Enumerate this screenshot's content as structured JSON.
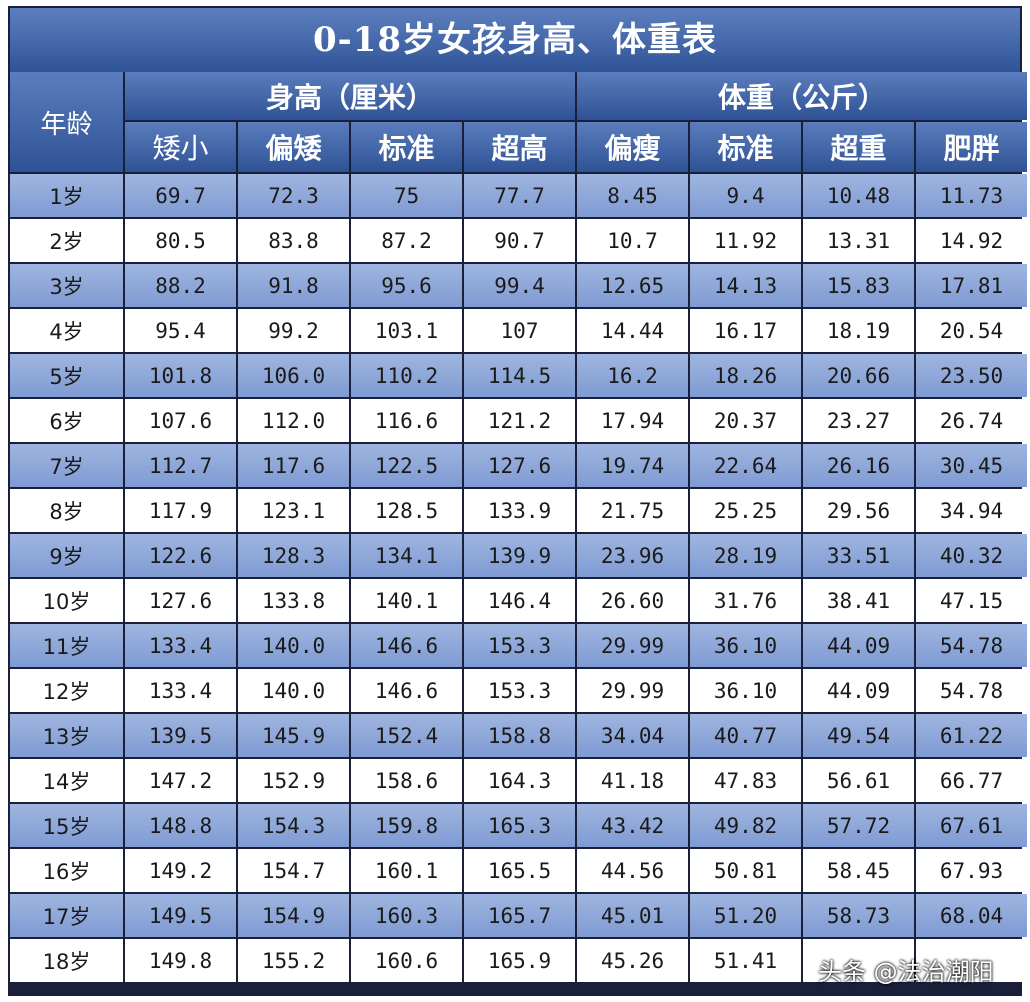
{
  "title": "0-18岁女孩身高、体重表",
  "header": {
    "age": "年龄",
    "height_group": "身高（厘米）",
    "weight_group": "体重（公斤）",
    "height_cols": [
      "矮小",
      "偏矮",
      "标准",
      "超高"
    ],
    "weight_cols": [
      "偏瘦",
      "标准",
      "超重",
      "肥胖"
    ]
  },
  "rows": [
    [
      "1岁",
      "69.7",
      "72.3",
      "75",
      "77.7",
      "8.45",
      "9.4",
      "10.48",
      "11.73"
    ],
    [
      "2岁",
      "80.5",
      "83.8",
      "87.2",
      "90.7",
      "10.7",
      "11.92",
      "13.31",
      "14.92"
    ],
    [
      "3岁",
      "88.2",
      "91.8",
      "95.6",
      "99.4",
      "12.65",
      "14.13",
      "15.83",
      "17.81"
    ],
    [
      "4岁",
      "95.4",
      "99.2",
      "103.1",
      "107",
      "14.44",
      "16.17",
      "18.19",
      "20.54"
    ],
    [
      "5岁",
      "101.8",
      "106.0",
      "110.2",
      "114.5",
      "16.2",
      "18.26",
      "20.66",
      "23.50"
    ],
    [
      "6岁",
      "107.6",
      "112.0",
      "116.6",
      "121.2",
      "17.94",
      "20.37",
      "23.27",
      "26.74"
    ],
    [
      "7岁",
      "112.7",
      "117.6",
      "122.5",
      "127.6",
      "19.74",
      "22.64",
      "26.16",
      "30.45"
    ],
    [
      "8岁",
      "117.9",
      "123.1",
      "128.5",
      "133.9",
      "21.75",
      "25.25",
      "29.56",
      "34.94"
    ],
    [
      "9岁",
      "122.6",
      "128.3",
      "134.1",
      "139.9",
      "23.96",
      "28.19",
      "33.51",
      "40.32"
    ],
    [
      "10岁",
      "127.6",
      "133.8",
      "140.1",
      "146.4",
      "26.60",
      "31.76",
      "38.41",
      "47.15"
    ],
    [
      "11岁",
      "133.4",
      "140.0",
      "146.6",
      "153.3",
      "29.99",
      "36.10",
      "44.09",
      "54.78"
    ],
    [
      "12岁",
      "133.4",
      "140.0",
      "146.6",
      "153.3",
      "29.99",
      "36.10",
      "44.09",
      "54.78"
    ],
    [
      "13岁",
      "139.5",
      "145.9",
      "152.4",
      "158.8",
      "34.04",
      "40.77",
      "49.54",
      "61.22"
    ],
    [
      "14岁",
      "147.2",
      "152.9",
      "158.6",
      "164.3",
      "41.18",
      "47.83",
      "56.61",
      "66.77"
    ],
    [
      "15岁",
      "148.8",
      "154.3",
      "159.8",
      "165.3",
      "43.42",
      "49.82",
      "57.72",
      "67.61"
    ],
    [
      "16岁",
      "149.2",
      "154.7",
      "160.1",
      "165.5",
      "44.56",
      "50.81",
      "58.45",
      "67.93"
    ],
    [
      "17岁",
      "149.5",
      "154.9",
      "160.3",
      "165.7",
      "45.01",
      "51.20",
      "58.73",
      "68.04"
    ],
    [
      "18岁",
      "149.8",
      "155.2",
      "160.6",
      "165.9",
      "45.26",
      "51.41",
      "",
      ""
    ]
  ],
  "watermark": "头条 @法治潮阳"
}
